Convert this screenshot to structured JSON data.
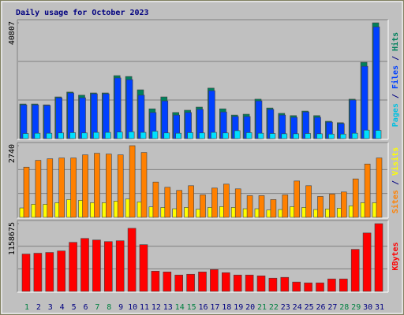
{
  "chart_data": [
    {
      "type": "bar",
      "title": "Daily usage for October 2023",
      "legend_separator": " / ",
      "ylim": [
        0,
        40807
      ],
      "yticks": [
        40807
      ],
      "series": [
        {
          "name": "Pages",
          "color": "#00e0ff",
          "label_color": "#00c0e0",
          "values": [
            1800,
            1900,
            1900,
            2000,
            2100,
            2000,
            2200,
            2200,
            2300,
            2400,
            2200,
            2600,
            2000,
            1900,
            2100,
            2000,
            2200,
            2000,
            2800,
            2100,
            1900,
            1800,
            1700,
            1700,
            1800,
            1700,
            1600,
            1600,
            1900,
            3000,
            2900
          ]
        },
        {
          "name": "Files",
          "color": "#0040ff",
          "label_color": "#0040ff",
          "values": [
            11900,
            11900,
            11700,
            14400,
            16100,
            14400,
            15800,
            15800,
            21400,
            20800,
            15300,
            9200,
            13300,
            8300,
            9200,
            10300,
            16900,
            9400,
            7800,
            7800,
            13300,
            10300,
            8300,
            7500,
            9400,
            7500,
            5800,
            5300,
            13600,
            25500,
            39400
          ]
        },
        {
          "name": "Hits",
          "color": "#00805c",
          "label_color": "#00805c",
          "values": [
            12200,
            12200,
            11900,
            14700,
            16400,
            15300,
            16100,
            16100,
            22200,
            21900,
            17200,
            10500,
            14700,
            9200,
            10000,
            11100,
            17800,
            10500,
            8300,
            8600,
            13900,
            10800,
            8900,
            8100,
            9700,
            8100,
            6100,
            5600,
            13900,
            26900,
            40807
          ]
        }
      ]
    },
    {
      "type": "bar",
      "legend_separator": " / ",
      "ylim": [
        0,
        2740
      ],
      "yticks": [
        2740
      ],
      "series": [
        {
          "name": "Sites",
          "color": "#ff8000",
          "label_color": "#ff8000",
          "values": [
            1920,
            2180,
            2240,
            2270,
            2270,
            2390,
            2450,
            2420,
            2390,
            2740,
            2480,
            1350,
            1150,
            1030,
            1210,
            860,
            1120,
            1270,
            1090,
            830,
            830,
            680,
            860,
            1390,
            1210,
            800,
            890,
            970,
            1470,
            2040,
            2270
          ]
        },
        {
          "name": "Visits",
          "color": "#ffff00",
          "label_color": "#ffff00",
          "values": [
            360,
            500,
            500,
            560,
            680,
            650,
            560,
            560,
            620,
            700,
            590,
            400,
            380,
            330,
            380,
            310,
            380,
            410,
            380,
            330,
            330,
            280,
            300,
            410,
            380,
            300,
            320,
            350,
            440,
            560,
            560
          ]
        }
      ]
    },
    {
      "type": "bar",
      "ylim": [
        0,
        1158675
      ],
      "yticks": [
        1158675
      ],
      "categories": [
        "1",
        "2",
        "3",
        "4",
        "5",
        "6",
        "7",
        "8",
        "9",
        "10",
        "11",
        "12",
        "13",
        "14",
        "15",
        "16",
        "17",
        "18",
        "19",
        "20",
        "21",
        "22",
        "23",
        "24",
        "25",
        "26",
        "27",
        "28",
        "29",
        "30",
        "31"
      ],
      "category_colors": [
        "#008040",
        "#000080",
        "#000080",
        "#000080",
        "#000080",
        "#000080",
        "#008040",
        "#008040",
        "#000080",
        "#000080",
        "#000080",
        "#000080",
        "#000080",
        "#008040",
        "#008040",
        "#000080",
        "#000080",
        "#000080",
        "#000080",
        "#000080",
        "#008040",
        "#008040",
        "#000080",
        "#000080",
        "#000080",
        "#000080",
        "#000080",
        "#008040",
        "#008040",
        "#000080",
        "#000080"
      ],
      "series": [
        {
          "name": "KBytes",
          "color": "#ff0000",
          "label_color": "#ff0000",
          "values": [
            639000,
            653000,
            666000,
            692000,
            839000,
            906000,
            879000,
            852000,
            866000,
            1079000,
            799000,
            346000,
            333000,
            280000,
            293000,
            333000,
            373000,
            320000,
            280000,
            280000,
            266000,
            226000,
            240000,
            160000,
            146000,
            146000,
            213000,
            213000,
            719000,
            999000,
            1158675
          ]
        }
      ]
    }
  ]
}
